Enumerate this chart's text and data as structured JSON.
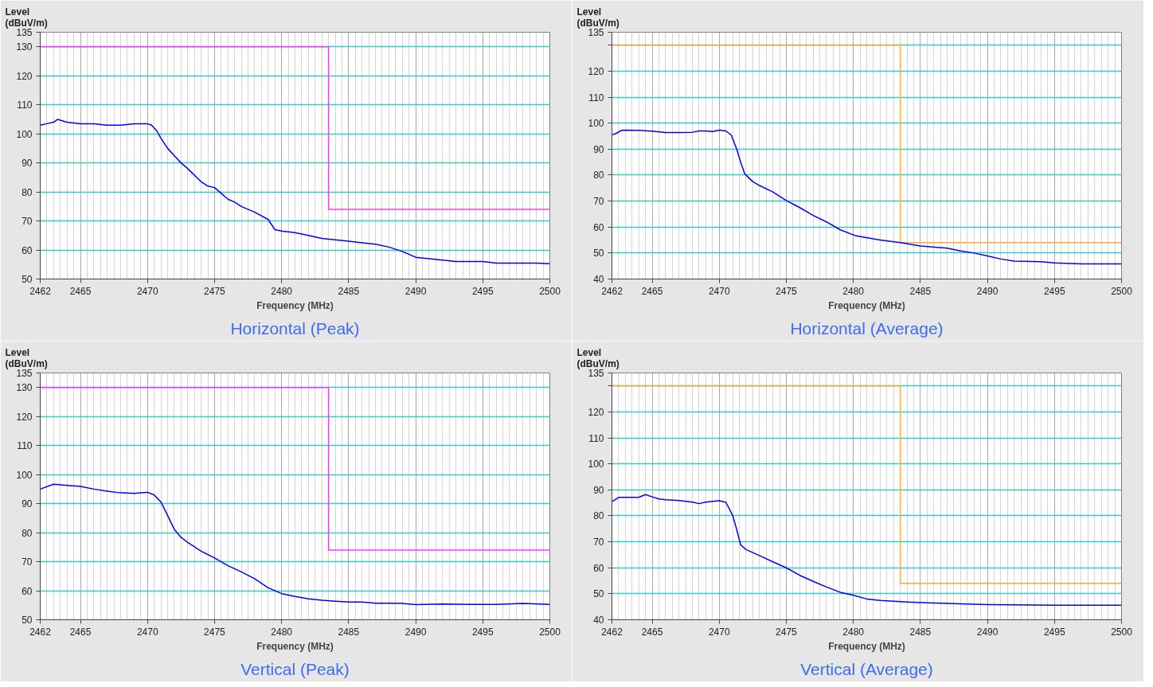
{
  "chart_data": [
    {
      "type": "line",
      "title": "Horizontal (Peak)",
      "xlabel": "Frequency (MHz)",
      "ylabel": "Level (dBuV/m)",
      "xlim": [
        2462,
        2500
      ],
      "ylim": [
        50,
        135
      ],
      "grid": true,
      "xticks": [
        2462,
        {
          "value": 2462.5,
          "label": null
        },
        {
          "value": 2463,
          "label": null
        },
        {
          "value": 2463.5,
          "label": null
        },
        {
          "value": 2464,
          "label": null
        },
        {
          "value": 2464.5,
          "label": null
        },
        2465,
        {
          "value": 2465.5,
          "label": null
        },
        {
          "value": 2466,
          "label": null
        },
        {
          "value": 2466.5,
          "label": null
        },
        {
          "value": 2467,
          "label": null
        },
        {
          "value": 2467.5,
          "label": null
        },
        {
          "value": 2468,
          "label": null
        },
        {
          "value": 2468.5,
          "label": null
        },
        {
          "value": 2469,
          "label": null
        },
        {
          "value": 2469.5,
          "label": null
        },
        2470,
        {
          "value": 2470.5,
          "label": null
        },
        {
          "value": 2471,
          "label": null
        },
        {
          "value": 2471.5,
          "label": null
        },
        {
          "value": 2472,
          "label": null
        },
        {
          "value": 2472.5,
          "label": null
        },
        {
          "value": 2473,
          "label": null
        },
        {
          "value": 2473.5,
          "label": null
        },
        {
          "value": 2474,
          "label": null
        },
        {
          "value": 2474.5,
          "label": null
        },
        2475,
        {
          "value": 2475.5,
          "label": null
        },
        {
          "value": 2476,
          "label": null
        },
        {
          "value": 2476.5,
          "label": null
        },
        {
          "value": 2477,
          "label": null
        },
        {
          "value": 2477.5,
          "label": null
        },
        {
          "value": 2478,
          "label": null
        },
        {
          "value": 2478.5,
          "label": null
        },
        {
          "value": 2479,
          "label": null
        },
        {
          "value": 2479.5,
          "label": null
        },
        2480,
        {
          "value": 2480.5,
          "label": null
        },
        {
          "value": 2481,
          "label": null
        },
        {
          "value": 2481.5,
          "label": null
        },
        {
          "value": 2482,
          "label": null
        },
        {
          "value": 2482.5,
          "label": null
        },
        {
          "value": 2483,
          "label": null
        },
        {
          "value": 2483.5,
          "label": null
        },
        {
          "value": 2484,
          "label": null
        },
        {
          "value": 2484.5,
          "label": null
        },
        2485,
        {
          "value": 2485.5,
          "label": null
        },
        {
          "value": 2486,
          "label": null
        },
        {
          "value": 2486.5,
          "label": null
        },
        {
          "value": 2487,
          "label": null
        },
        {
          "value": 2487.5,
          "label": null
        },
        {
          "value": 2488,
          "label": null
        },
        {
          "value": 2488.5,
          "label": null
        },
        {
          "value": 2489,
          "label": null
        },
        {
          "value": 2489.5,
          "label": null
        },
        2490,
        {
          "value": 2490.5,
          "label": null
        },
        {
          "value": 2491,
          "label": null
        },
        {
          "value": 2491.5,
          "label": null
        },
        {
          "value": 2492,
          "label": null
        },
        {
          "value": 2492.5,
          "label": null
        },
        {
          "value": 2493,
          "label": null
        },
        {
          "value": 2493.5,
          "label": null
        },
        {
          "value": 2494,
          "label": null
        },
        {
          "value": 2494.5,
          "label": null
        },
        2495,
        {
          "value": 2495.5,
          "label": null
        },
        {
          "value": 2496,
          "label": null
        },
        {
          "value": 2496.5,
          "label": null
        },
        {
          "value": 2497,
          "label": null
        },
        {
          "value": 2497.5,
          "label": null
        },
        {
          "value": 2498,
          "label": null
        },
        {
          "value": 2498.5,
          "label": null
        },
        {
          "value": 2499,
          "label": null
        },
        {
          "value": 2499.5,
          "label": null
        },
        2500
      ],
      "yticks": [
        50,
        60,
        70,
        80,
        90,
        100,
        110,
        120,
        130,
        135
      ],
      "series": [
        {
          "color": "#ff33ff",
          "x": [
            2462,
            2483.5,
            2483.5,
            2500
          ],
          "values": [
            130,
            130,
            74,
            74
          ]
        },
        {
          "color": "#0000ff",
          "x": [
            2462,
            2462.5,
            2463,
            2463.3,
            2464,
            2465,
            2466,
            2467,
            2468,
            2469,
            2470,
            2470.3,
            2470.7,
            2471,
            2471.5,
            2472,
            2472.5,
            2473,
            2474,
            2474.5,
            2475,
            2475.5,
            2476,
            2476.5,
            2477,
            2478,
            2479,
            2479.5,
            2480,
            2481,
            2482,
            2483,
            2484,
            2485,
            2486,
            2487,
            2488,
            2489,
            2490,
            2491,
            2492,
            2493,
            2494,
            2495,
            2496,
            2497,
            2498,
            2499,
            2500
          ],
          "values": [
            103,
            103.5,
            104,
            105,
            104,
            103.5,
            103.5,
            103,
            103,
            103.5,
            103.5,
            103,
            101,
            98.5,
            95,
            92.5,
            90,
            88,
            83.5,
            82,
            81.5,
            79.5,
            77.5,
            76.5,
            75,
            73,
            70.5,
            67,
            66.5,
            66,
            65,
            64,
            63.5,
            63,
            62.5,
            62,
            61,
            59.5,
            57.5,
            57,
            56.5,
            56,
            56,
            56,
            55.5,
            55.5,
            55.5,
            55.5,
            55.3
          ]
        }
      ]
    },
    {
      "type": "line",
      "title": "Horizontal (Average)",
      "xlabel": "Frequency (MHz)",
      "ylabel": "Level (dBuV/m)",
      "xlim": [
        2462,
        2500
      ],
      "ylim": [
        40,
        135
      ],
      "grid": true,
      "xticks": [
        2462,
        {
          "value": 2462.5,
          "label": null
        },
        {
          "value": 2463,
          "label": null
        },
        {
          "value": 2463.5,
          "label": null
        },
        {
          "value": 2464,
          "label": null
        },
        {
          "value": 2464.5,
          "label": null
        },
        2465,
        {
          "value": 2465.5,
          "label": null
        },
        {
          "value": 2466,
          "label": null
        },
        {
          "value": 2466.5,
          "label": null
        },
        {
          "value": 2467,
          "label": null
        },
        {
          "value": 2467.5,
          "label": null
        },
        {
          "value": 2468,
          "label": null
        },
        {
          "value": 2468.5,
          "label": null
        },
        {
          "value": 2469,
          "label": null
        },
        {
          "value": 2469.5,
          "label": null
        },
        2470,
        {
          "value": 2470.5,
          "label": null
        },
        {
          "value": 2471,
          "label": null
        },
        {
          "value": 2471.5,
          "label": null
        },
        {
          "value": 2472,
          "label": null
        },
        {
          "value": 2472.5,
          "label": null
        },
        {
          "value": 2473,
          "label": null
        },
        {
          "value": 2473.5,
          "label": null
        },
        {
          "value": 2474,
          "label": null
        },
        {
          "value": 2474.5,
          "label": null
        },
        2475,
        {
          "value": 2475.5,
          "label": null
        },
        {
          "value": 2476,
          "label": null
        },
        {
          "value": 2476.5,
          "label": null
        },
        {
          "value": 2477,
          "label": null
        },
        {
          "value": 2477.5,
          "label": null
        },
        {
          "value": 2478,
          "label": null
        },
        {
          "value": 2478.5,
          "label": null
        },
        {
          "value": 2479,
          "label": null
        },
        {
          "value": 2479.5,
          "label": null
        },
        2480,
        {
          "value": 2480.5,
          "label": null
        },
        {
          "value": 2481,
          "label": null
        },
        {
          "value": 2481.5,
          "label": null
        },
        {
          "value": 2482,
          "label": null
        },
        {
          "value": 2482.5,
          "label": null
        },
        {
          "value": 2483,
          "label": null
        },
        {
          "value": 2483.5,
          "label": null
        },
        {
          "value": 2484,
          "label": null
        },
        {
          "value": 2484.5,
          "label": null
        },
        2485,
        {
          "value": 2485.5,
          "label": null
        },
        {
          "value": 2486,
          "label": null
        },
        {
          "value": 2486.5,
          "label": null
        },
        {
          "value": 2487,
          "label": null
        },
        {
          "value": 2487.5,
          "label": null
        },
        {
          "value": 2488,
          "label": null
        },
        {
          "value": 2488.5,
          "label": null
        },
        {
          "value": 2489,
          "label": null
        },
        {
          "value": 2489.5,
          "label": null
        },
        2490,
        {
          "value": 2490.5,
          "label": null
        },
        {
          "value": 2491,
          "label": null
        },
        {
          "value": 2491.5,
          "label": null
        },
        {
          "value": 2492,
          "label": null
        },
        {
          "value": 2492.5,
          "label": null
        },
        {
          "value": 2493,
          "label": null
        },
        {
          "value": 2493.5,
          "label": null
        },
        {
          "value": 2494,
          "label": null
        },
        {
          "value": 2494.5,
          "label": null
        },
        2495,
        {
          "value": 2495.5,
          "label": null
        },
        {
          "value": 2496,
          "label": null
        },
        {
          "value": 2496.5,
          "label": null
        },
        {
          "value": 2497,
          "label": null
        },
        {
          "value": 2497.5,
          "label": null
        },
        {
          "value": 2498,
          "label": null
        },
        {
          "value": 2498.5,
          "label": null
        },
        {
          "value": 2499,
          "label": null
        },
        {
          "value": 2499.5,
          "label": null
        },
        2500
      ],
      "yticks": [
        40,
        50,
        60,
        70,
        80,
        90,
        100,
        110,
        120,
        {
          "value": 130,
          "label": null
        },
        135
      ],
      "series": [
        {
          "color": "#ffaa33",
          "x": [
            2462,
            2483.5,
            2483.5,
            2500
          ],
          "values": [
            130,
            130,
            54,
            54
          ]
        },
        {
          "color": "#0000ff",
          "x": [
            2462,
            2462.3,
            2462.7,
            2463,
            2464,
            2465,
            2466,
            2467,
            2468,
            2468.5,
            2469,
            2469.5,
            2470,
            2470.5,
            2470.9,
            2471.3,
            2471.6,
            2471.9,
            2472.5,
            2473,
            2474,
            2475,
            2476,
            2477,
            2478,
            2479,
            2480.2,
            2482,
            2483.5,
            2485,
            2487,
            2488,
            2489,
            2490,
            2491,
            2492,
            2494,
            2495,
            2497,
            2500
          ],
          "values": [
            95.5,
            96,
            97.2,
            97.3,
            97.2,
            96.9,
            96.4,
            96.4,
            96.5,
            97,
            97,
            96.8,
            97.3,
            97,
            95.4,
            90,
            85,
            80.5,
            77.5,
            76,
            73.5,
            70.2,
            67.5,
            64.5,
            62,
            59,
            56.6,
            55,
            54,
            52.7,
            51.9,
            50.8,
            50,
            48.9,
            47.7,
            46.9,
            46.7,
            46.2,
            45.8,
            45.8
          ]
        }
      ]
    },
    {
      "type": "line",
      "title": "Vertical (Peak)",
      "xlabel": "Frequency (MHz)",
      "ylabel": "Level (dBuV/m)",
      "xlim": [
        2462,
        2500
      ],
      "ylim": [
        50,
        135
      ],
      "grid": true,
      "xticks": [
        2462,
        {
          "value": 2462.5,
          "label": null
        },
        {
          "value": 2463,
          "label": null
        },
        {
          "value": 2463.5,
          "label": null
        },
        {
          "value": 2464,
          "label": null
        },
        {
          "value": 2464.5,
          "label": null
        },
        2465,
        {
          "value": 2465.5,
          "label": null
        },
        {
          "value": 2466,
          "label": null
        },
        {
          "value": 2466.5,
          "label": null
        },
        {
          "value": 2467,
          "label": null
        },
        {
          "value": 2467.5,
          "label": null
        },
        {
          "value": 2468,
          "label": null
        },
        {
          "value": 2468.5,
          "label": null
        },
        {
          "value": 2469,
          "label": null
        },
        {
          "value": 2469.5,
          "label": null
        },
        2470,
        {
          "value": 2470.5,
          "label": null
        },
        {
          "value": 2471,
          "label": null
        },
        {
          "value": 2471.5,
          "label": null
        },
        {
          "value": 2472,
          "label": null
        },
        {
          "value": 2472.5,
          "label": null
        },
        {
          "value": 2473,
          "label": null
        },
        {
          "value": 2473.5,
          "label": null
        },
        {
          "value": 2474,
          "label": null
        },
        {
          "value": 2474.5,
          "label": null
        },
        2475,
        {
          "value": 2475.5,
          "label": null
        },
        {
          "value": 2476,
          "label": null
        },
        {
          "value": 2476.5,
          "label": null
        },
        {
          "value": 2477,
          "label": null
        },
        {
          "value": 2477.5,
          "label": null
        },
        {
          "value": 2478,
          "label": null
        },
        {
          "value": 2478.5,
          "label": null
        },
        {
          "value": 2479,
          "label": null
        },
        {
          "value": 2479.5,
          "label": null
        },
        2480,
        {
          "value": 2480.5,
          "label": null
        },
        {
          "value": 2481,
          "label": null
        },
        {
          "value": 2481.5,
          "label": null
        },
        {
          "value": 2482,
          "label": null
        },
        {
          "value": 2482.5,
          "label": null
        },
        {
          "value": 2483,
          "label": null
        },
        {
          "value": 2483.5,
          "label": null
        },
        {
          "value": 2484,
          "label": null
        },
        {
          "value": 2484.5,
          "label": null
        },
        2485,
        {
          "value": 2485.5,
          "label": null
        },
        {
          "value": 2486,
          "label": null
        },
        {
          "value": 2486.5,
          "label": null
        },
        {
          "value": 2487,
          "label": null
        },
        {
          "value": 2487.5,
          "label": null
        },
        {
          "value": 2488,
          "label": null
        },
        {
          "value": 2488.5,
          "label": null
        },
        {
          "value": 2489,
          "label": null
        },
        {
          "value": 2489.5,
          "label": null
        },
        2490,
        {
          "value": 2490.5,
          "label": null
        },
        {
          "value": 2491,
          "label": null
        },
        {
          "value": 2491.5,
          "label": null
        },
        {
          "value": 2492,
          "label": null
        },
        {
          "value": 2492.5,
          "label": null
        },
        {
          "value": 2493,
          "label": null
        },
        {
          "value": 2493.5,
          "label": null
        },
        {
          "value": 2494,
          "label": null
        },
        {
          "value": 2494.5,
          "label": null
        },
        2495,
        {
          "value": 2495.5,
          "label": null
        },
        {
          "value": 2496,
          "label": null
        },
        {
          "value": 2496.5,
          "label": null
        },
        {
          "value": 2497,
          "label": null
        },
        {
          "value": 2497.5,
          "label": null
        },
        {
          "value": 2498,
          "label": null
        },
        {
          "value": 2498.5,
          "label": null
        },
        {
          "value": 2499,
          "label": null
        },
        {
          "value": 2499.5,
          "label": null
        },
        2500
      ],
      "yticks": [
        50,
        60,
        70,
        80,
        90,
        100,
        110,
        120,
        130,
        135
      ],
      "series": [
        {
          "color": "#ff33ff",
          "x": [
            2462,
            2483.5,
            2483.5,
            2500
          ],
          "values": [
            130,
            130,
            74,
            74
          ]
        },
        {
          "color": "#0000ff",
          "x": [
            2462,
            2463,
            2464,
            2465,
            2466,
            2467,
            2468,
            2469,
            2470,
            2470.5,
            2471,
            2471.5,
            2472,
            2472.5,
            2473,
            2474,
            2475,
            2476,
            2477,
            2478,
            2479,
            2480,
            2481,
            2482,
            2483,
            2484,
            2485,
            2486,
            2487,
            2488,
            2489,
            2490,
            2492,
            2494,
            2496,
            2498,
            2500
          ],
          "values": [
            95,
            96.7,
            96.3,
            95.9,
            95,
            94.3,
            93.7,
            93.5,
            93.9,
            93,
            90.6,
            85.9,
            81.1,
            78.4,
            76.6,
            73.6,
            71.3,
            68.6,
            66.5,
            64.1,
            61,
            59,
            58,
            57.2,
            56.7,
            56.4,
            56.1,
            56.1,
            55.7,
            55.7,
            55.6,
            55.2,
            55.4,
            55.3,
            55.3,
            55.6,
            55.3
          ]
        }
      ]
    },
    {
      "type": "line",
      "title": "Vertical (Average)",
      "xlabel": "Frequency (MHz)",
      "ylabel": "Level (dBuV/m)",
      "xlim": [
        2462,
        2500
      ],
      "ylim": [
        40,
        135
      ],
      "grid": true,
      "xticks": [
        2462,
        {
          "value": 2462.5,
          "label": null
        },
        {
          "value": 2463,
          "label": null
        },
        {
          "value": 2463.5,
          "label": null
        },
        {
          "value": 2464,
          "label": null
        },
        {
          "value": 2464.5,
          "label": null
        },
        2465,
        {
          "value": 2465.5,
          "label": null
        },
        {
          "value": 2466,
          "label": null
        },
        {
          "value": 2466.5,
          "label": null
        },
        {
          "value": 2467,
          "label": null
        },
        {
          "value": 2467.5,
          "label": null
        },
        {
          "value": 2468,
          "label": null
        },
        {
          "value": 2468.5,
          "label": null
        },
        {
          "value": 2469,
          "label": null
        },
        {
          "value": 2469.5,
          "label": null
        },
        2470,
        {
          "value": 2470.5,
          "label": null
        },
        {
          "value": 2471,
          "label": null
        },
        {
          "value": 2471.5,
          "label": null
        },
        {
          "value": 2472,
          "label": null
        },
        {
          "value": 2472.5,
          "label": null
        },
        {
          "value": 2473,
          "label": null
        },
        {
          "value": 2473.5,
          "label": null
        },
        {
          "value": 2474,
          "label": null
        },
        {
          "value": 2474.5,
          "label": null
        },
        2475,
        {
          "value": 2475.5,
          "label": null
        },
        {
          "value": 2476,
          "label": null
        },
        {
          "value": 2476.5,
          "label": null
        },
        {
          "value": 2477,
          "label": null
        },
        {
          "value": 2477.5,
          "label": null
        },
        {
          "value": 2478,
          "label": null
        },
        {
          "value": 2478.5,
          "label": null
        },
        {
          "value": 2479,
          "label": null
        },
        {
          "value": 2479.5,
          "label": null
        },
        2480,
        {
          "value": 2480.5,
          "label": null
        },
        {
          "value": 2481,
          "label": null
        },
        {
          "value": 2481.5,
          "label": null
        },
        {
          "value": 2482,
          "label": null
        },
        {
          "value": 2482.5,
          "label": null
        },
        {
          "value": 2483,
          "label": null
        },
        {
          "value": 2483.5,
          "label": null
        },
        {
          "value": 2484,
          "label": null
        },
        {
          "value": 2484.5,
          "label": null
        },
        2485,
        {
          "value": 2485.5,
          "label": null
        },
        {
          "value": 2486,
          "label": null
        },
        {
          "value": 2486.5,
          "label": null
        },
        {
          "value": 2487,
          "label": null
        },
        {
          "value": 2487.5,
          "label": null
        },
        {
          "value": 2488,
          "label": null
        },
        {
          "value": 2488.5,
          "label": null
        },
        {
          "value": 2489,
          "label": null
        },
        {
          "value": 2489.5,
          "label": null
        },
        2490,
        {
          "value": 2490.5,
          "label": null
        },
        {
          "value": 2491,
          "label": null
        },
        {
          "value": 2491.5,
          "label": null
        },
        {
          "value": 2492,
          "label": null
        },
        {
          "value": 2492.5,
          "label": null
        },
        {
          "value": 2493,
          "label": null
        },
        {
          "value": 2493.5,
          "label": null
        },
        {
          "value": 2494,
          "label": null
        },
        {
          "value": 2494.5,
          "label": null
        },
        2495,
        {
          "value": 2495.5,
          "label": null
        },
        {
          "value": 2496,
          "label": null
        },
        {
          "value": 2496.5,
          "label": null
        },
        {
          "value": 2497,
          "label": null
        },
        {
          "value": 2497.5,
          "label": null
        },
        {
          "value": 2498,
          "label": null
        },
        {
          "value": 2498.5,
          "label": null
        },
        {
          "value": 2499,
          "label": null
        },
        {
          "value": 2499.5,
          "label": null
        },
        2500
      ],
      "yticks": [
        40,
        50,
        60,
        70,
        80,
        90,
        100,
        110,
        120,
        {
          "value": 130,
          "label": null
        },
        135
      ],
      "series": [
        {
          "color": "#ffaa33",
          "x": [
            2462,
            2483.5,
            2483.5,
            2500
          ],
          "values": [
            130,
            130,
            54,
            54
          ]
        },
        {
          "color": "#0000ff",
          "x": [
            2462,
            2462.5,
            2463,
            2464,
            2464.5,
            2465,
            2465.5,
            2466,
            2467,
            2468,
            2468.5,
            2469,
            2470,
            2470.5,
            2471,
            2471.3,
            2471.6,
            2472,
            2473,
            2474,
            2475,
            2476,
            2477,
            2478,
            2479,
            2480,
            2481,
            2482,
            2484,
            2486,
            2488,
            2490,
            2495,
            2500
          ],
          "values": [
            85.5,
            87.1,
            87.1,
            87.1,
            88.2,
            87.3,
            86.5,
            86.2,
            85.9,
            85.3,
            84.7,
            85.3,
            85.8,
            85.2,
            80.2,
            74.8,
            68.8,
            67,
            64.7,
            62.3,
            60,
            57.1,
            54.8,
            52.6,
            50.6,
            49.4,
            48,
            47.4,
            46.8,
            46.4,
            46.1,
            45.8,
            45.6,
            45.6
          ]
        }
      ]
    }
  ]
}
